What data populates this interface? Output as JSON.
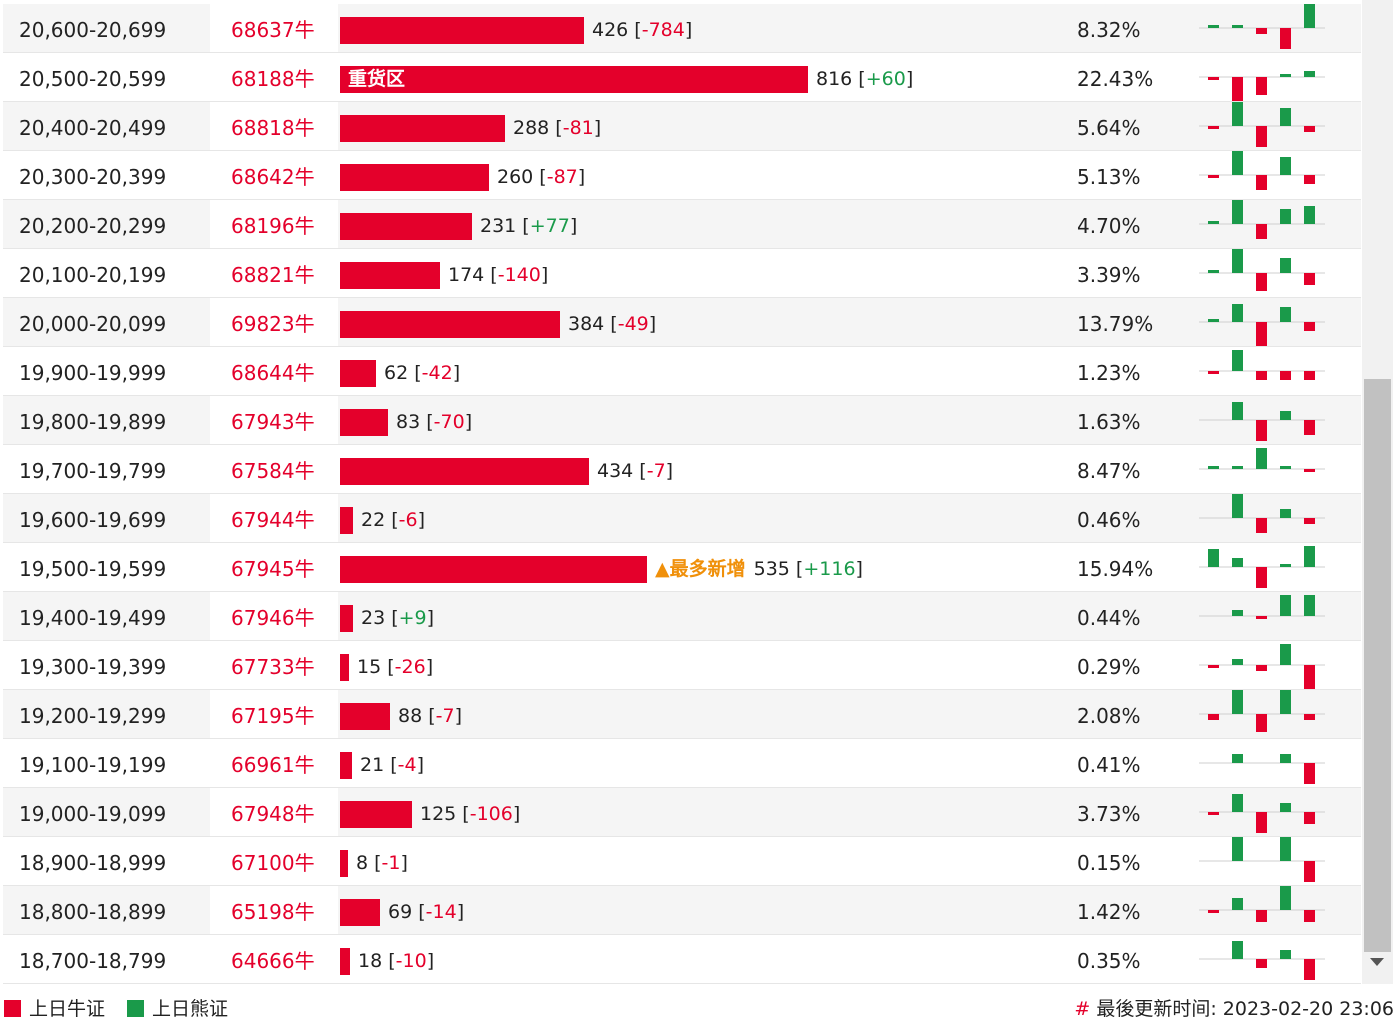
{
  "colors": {
    "bull": "#e4002b",
    "bear": "#1a9a4a",
    "new": "#f0900a"
  },
  "rows": [
    {
      "range": "20,600-20,699",
      "code": "68637牛",
      "count": 426,
      "change": "-784",
      "pct": "8.32%",
      "spark": [
        -1,
        -1,
        2,
        7,
        -8
      ]
    },
    {
      "range": "20,500-20,599",
      "code": "68188牛",
      "count": 816,
      "change": "+60",
      "pct": "22.43%",
      "spark": [
        1,
        8,
        6,
        -1,
        -2
      ],
      "tag": "重货区"
    },
    {
      "range": "20,400-20,499",
      "code": "68818牛",
      "count": 288,
      "change": "-81",
      "pct": "5.64%",
      "spark": [
        1,
        -9,
        7,
        -6,
        2
      ]
    },
    {
      "range": "20,300-20,399",
      "code": "68642牛",
      "count": 260,
      "change": "-87",
      "pct": "5.13%",
      "spark": [
        1,
        -9,
        5,
        -6,
        3
      ]
    },
    {
      "range": "20,200-20,299",
      "code": "68196牛",
      "count": 231,
      "change": "+77",
      "pct": "4.70%",
      "spark": [
        -1,
        -8,
        5,
        -5,
        -6
      ]
    },
    {
      "range": "20,100-20,199",
      "code": "68821牛",
      "count": 174,
      "change": "-140",
      "pct": "3.39%",
      "spark": [
        -1,
        -8,
        6,
        -5,
        4
      ]
    },
    {
      "range": "20,000-20,099",
      "code": "69823牛",
      "count": 384,
      "change": "-49",
      "pct": "13.79%",
      "spark": [
        -1,
        -6,
        8,
        -5,
        3
      ]
    },
    {
      "range": "19,900-19,999",
      "code": "68644牛",
      "count": 62,
      "change": "-42",
      "pct": "1.23%",
      "spark": [
        1,
        -7,
        3,
        3,
        3
      ]
    },
    {
      "range": "19,800-19,899",
      "code": "67943牛",
      "count": 83,
      "change": "-70",
      "pct": "1.63%",
      "spark": [
        0,
        -6,
        7,
        -3,
        5
      ]
    },
    {
      "range": "19,700-19,799",
      "code": "67584牛",
      "count": 434,
      "change": "-7",
      "pct": "8.47%",
      "spark": [
        -1,
        -1,
        -7,
        -1,
        1
      ]
    },
    {
      "range": "19,600-19,699",
      "code": "67944牛",
      "count": 22,
      "change": "-6",
      "pct": "0.46%",
      "spark": [
        0,
        -8,
        5,
        -3,
        2
      ]
    },
    {
      "range": "19,500-19,599",
      "code": "67945牛",
      "count": 535,
      "change": "+116",
      "pct": "15.94%",
      "spark": [
        -6,
        -3,
        7,
        -1,
        -7
      ],
      "new": "▲最多新增"
    },
    {
      "range": "19,400-19,499",
      "code": "67946牛",
      "count": 23,
      "change": "+9",
      "pct": "0.44%",
      "spark": [
        0,
        -2,
        1,
        -7,
        -7
      ]
    },
    {
      "range": "19,300-19,399",
      "code": "67733牛",
      "count": 15,
      "change": "-26",
      "pct": "0.29%",
      "spark": [
        1,
        -2,
        2,
        -7,
        8
      ]
    },
    {
      "range": "19,200-19,299",
      "code": "67195牛",
      "count": 88,
      "change": "-7",
      "pct": "2.08%",
      "spark": [
        2,
        -8,
        6,
        -8,
        2
      ]
    },
    {
      "range": "19,100-19,199",
      "code": "66961牛",
      "count": 21,
      "change": "-4",
      "pct": "0.41%",
      "spark": [
        0,
        -3,
        0,
        -3,
        7
      ]
    },
    {
      "range": "19,000-19,099",
      "code": "67948牛",
      "count": 125,
      "change": "-106",
      "pct": "3.73%",
      "spark": [
        1,
        -6,
        7,
        -3,
        4
      ]
    },
    {
      "range": "18,900-18,999",
      "code": "67100牛",
      "count": 8,
      "change": "-1",
      "pct": "0.15%",
      "spark": [
        0,
        -8,
        0,
        -8,
        7
      ]
    },
    {
      "range": "18,800-18,899",
      "code": "65198牛",
      "count": 69,
      "change": "-14",
      "pct": "1.42%",
      "spark": [
        1,
        -4,
        4,
        -8,
        4
      ]
    },
    {
      "range": "18,700-18,799",
      "code": "64666牛",
      "count": 18,
      "change": "-10",
      "pct": "0.35%",
      "spark": [
        0,
        -6,
        3,
        -3,
        7
      ]
    }
  ],
  "footer": {
    "legend_bull": "上日牛证",
    "legend_bear": "上日熊证",
    "updated_label": "最後更新时间: 2023-02-20 23:06"
  }
}
